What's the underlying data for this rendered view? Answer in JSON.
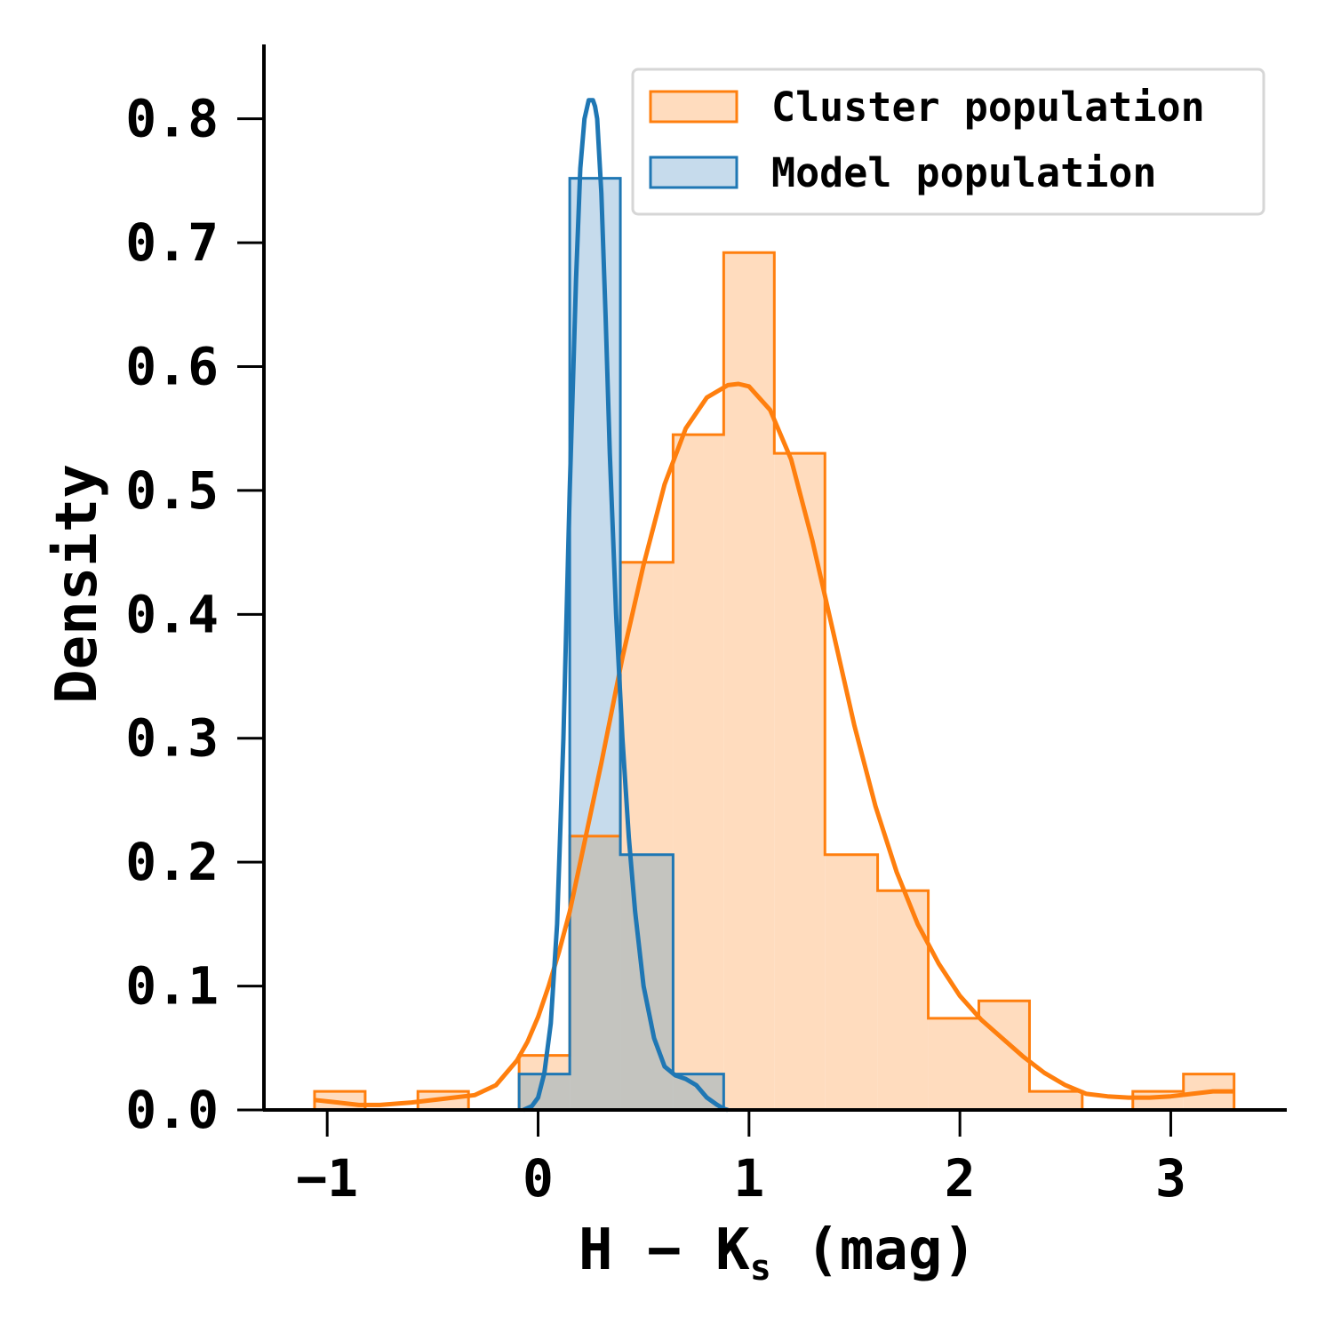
{
  "chart_data": {
    "type": "histogram",
    "xlabel": {
      "main": "H − K",
      "sub": "s",
      "unit": " (mag)"
    },
    "ylabel": "Density",
    "xlim": [
      -1.3,
      3.55
    ],
    "ylim": [
      0,
      0.86
    ],
    "xticks": [
      -1,
      0,
      1,
      2,
      3
    ],
    "xtick_labels": [
      "−1",
      "0",
      "1",
      "2",
      "3"
    ],
    "yticks": [
      0,
      0.1,
      0.2,
      0.3,
      0.4,
      0.5,
      0.6,
      0.7,
      0.8
    ],
    "ytick_labels": [
      "0.0",
      "0.1",
      "0.2",
      "0.3",
      "0.4",
      "0.5",
      "0.6",
      "0.7",
      "0.8"
    ],
    "grid": false,
    "legend_position": "top-right",
    "series": [
      {
        "name": "Cluster population",
        "color": "#ff7f0e",
        "fill": "#ffdcbe",
        "bins": [
          {
            "x0": -1.06,
            "x1": -0.82,
            "y": 0.015
          },
          {
            "x0": -0.82,
            "x1": -0.57,
            "y": 0.0
          },
          {
            "x0": -0.57,
            "x1": -0.33,
            "y": 0.015
          },
          {
            "x0": -0.33,
            "x1": -0.09,
            "y": 0.0
          },
          {
            "x0": -0.09,
            "x1": 0.15,
            "y": 0.044
          },
          {
            "x0": 0.15,
            "x1": 0.39,
            "y": 0.221
          },
          {
            "x0": 0.39,
            "x1": 0.64,
            "y": 0.442
          },
          {
            "x0": 0.64,
            "x1": 0.88,
            "y": 0.545
          },
          {
            "x0": 0.88,
            "x1": 1.12,
            "y": 0.692
          },
          {
            "x0": 1.12,
            "x1": 1.36,
            "y": 0.53
          },
          {
            "x0": 1.36,
            "x1": 1.61,
            "y": 0.206
          },
          {
            "x0": 1.61,
            "x1": 1.85,
            "y": 0.177
          },
          {
            "x0": 1.85,
            "x1": 2.09,
            "y": 0.074
          },
          {
            "x0": 2.09,
            "x1": 2.33,
            "y": 0.088
          },
          {
            "x0": 2.33,
            "x1": 2.58,
            "y": 0.015
          },
          {
            "x0": 2.58,
            "x1": 2.82,
            "y": 0.0
          },
          {
            "x0": 2.82,
            "x1": 3.06,
            "y": 0.015
          },
          {
            "x0": 3.06,
            "x1": 3.3,
            "y": 0.029
          }
        ],
        "kde": {
          "x": [
            -1.06,
            -0.95,
            -0.85,
            -0.75,
            -0.6,
            -0.45,
            -0.3,
            -0.2,
            -0.1,
            -0.05,
            0.0,
            0.05,
            0.1,
            0.15,
            0.2,
            0.3,
            0.4,
            0.5,
            0.6,
            0.7,
            0.8,
            0.9,
            0.95,
            1.0,
            1.1,
            1.2,
            1.3,
            1.4,
            1.5,
            1.6,
            1.7,
            1.8,
            1.9,
            2.0,
            2.1,
            2.2,
            2.3,
            2.4,
            2.5,
            2.6,
            2.7,
            2.8,
            2.9,
            3.0,
            3.1,
            3.2,
            3.3
          ],
          "y": [
            0.008,
            0.006,
            0.004,
            0.004,
            0.006,
            0.009,
            0.012,
            0.02,
            0.04,
            0.055,
            0.075,
            0.1,
            0.128,
            0.16,
            0.2,
            0.28,
            0.365,
            0.44,
            0.505,
            0.55,
            0.575,
            0.585,
            0.586,
            0.584,
            0.565,
            0.525,
            0.46,
            0.385,
            0.31,
            0.245,
            0.192,
            0.15,
            0.118,
            0.092,
            0.073,
            0.058,
            0.043,
            0.03,
            0.02,
            0.013,
            0.011,
            0.01,
            0.01,
            0.011,
            0.013,
            0.015,
            0.015
          ]
        }
      },
      {
        "name": "Model population",
        "color": "#1f77b4",
        "fill": "#c6dbec",
        "bins": [
          {
            "x0": -0.09,
            "x1": 0.15,
            "y": 0.029
          },
          {
            "x0": 0.15,
            "x1": 0.39,
            "y": 0.752
          },
          {
            "x0": 0.39,
            "x1": 0.64,
            "y": 0.206
          },
          {
            "x0": 0.64,
            "x1": 0.88,
            "y": 0.029
          }
        ],
        "kde": {
          "x": [
            -0.07,
            -0.03,
            0.0,
            0.03,
            0.06,
            0.09,
            0.12,
            0.15,
            0.18,
            0.2,
            0.22,
            0.24,
            0.26,
            0.27,
            0.28,
            0.3,
            0.32,
            0.34,
            0.37,
            0.4,
            0.43,
            0.46,
            0.5,
            0.55,
            0.6,
            0.65,
            0.7,
            0.75,
            0.8,
            0.85,
            0.88,
            0.9
          ],
          "y": [
            0.0,
            0.003,
            0.01,
            0.03,
            0.07,
            0.15,
            0.3,
            0.5,
            0.67,
            0.76,
            0.8,
            0.815,
            0.815,
            0.81,
            0.8,
            0.74,
            0.64,
            0.53,
            0.4,
            0.3,
            0.22,
            0.16,
            0.1,
            0.058,
            0.035,
            0.028,
            0.025,
            0.02,
            0.01,
            0.004,
            0.001,
            0.0
          ]
        }
      }
    ],
    "overlap_color": "#c4c4bf"
  }
}
